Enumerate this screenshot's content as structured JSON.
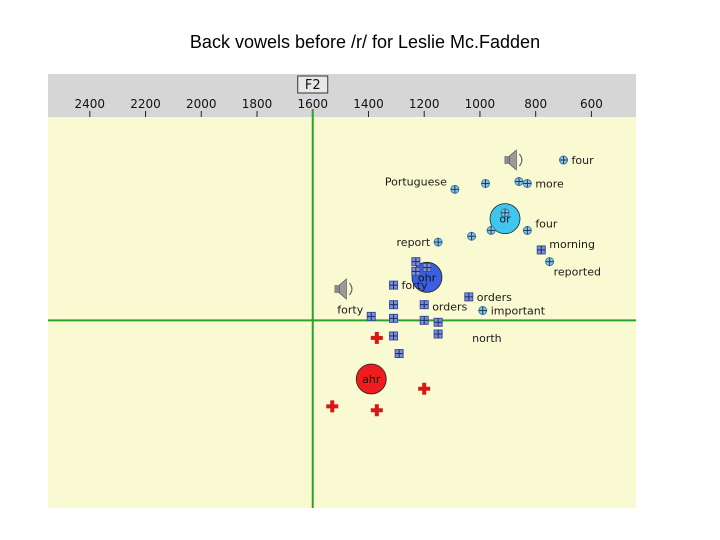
{
  "title": "Back vowels before /r/ for Leslie Mc.Fadden",
  "chart_data": {
    "type": "scatter",
    "title": "Back vowels before /r/ for Leslie Mc.Fadden",
    "x_axis": {
      "label": "F2",
      "reversed": true,
      "range": [
        2550,
        440
      ],
      "ticks": [
        2400,
        2200,
        2000,
        1800,
        1600,
        1400,
        1200,
        1000,
        800,
        600
      ],
      "position": "top"
    },
    "y_axis": {
      "label": "F1",
      "range": [
        0,
        1000
      ],
      "visible_ticks": false
    },
    "crosshair": {
      "x": 1600,
      "y": 520
    },
    "colors": {
      "plot_bg": "#fafad2",
      "axis_bg": "#d6d6d6",
      "crosshair": "#2aa32a"
    },
    "series": [
      {
        "name": "",
        "marker": "circle-plus",
        "color": "#3a7ea8",
        "points": [
          {
            "x": 700,
            "y": 110,
            "label": "four"
          },
          {
            "x": 1090,
            "y": 185,
            "label": "Portuguese"
          },
          {
            "x": 980,
            "y": 170,
            "label": ""
          },
          {
            "x": 860,
            "y": 165,
            "label": ""
          },
          {
            "x": 830,
            "y": 170,
            "label": "more"
          },
          {
            "x": 960,
            "y": 290,
            "label": ""
          },
          {
            "x": 1030,
            "y": 305,
            "label": ""
          },
          {
            "x": 1150,
            "y": 320,
            "label": "report"
          },
          {
            "x": 830,
            "y": 290,
            "label": "four"
          },
          {
            "x": 750,
            "y": 370,
            "label": "reported"
          },
          {
            "x": 910,
            "y": 245,
            "label": ""
          },
          {
            "x": 990,
            "y": 495,
            "label": "important"
          }
        ]
      },
      {
        "name": "",
        "marker": "square-grid",
        "color": "#3b4fa0",
        "points": [
          {
            "x": 1230,
            "y": 370,
            "label": ""
          },
          {
            "x": 1190,
            "y": 385,
            "label": ""
          },
          {
            "x": 1310,
            "y": 430,
            "label": "forty"
          },
          {
            "x": 1040,
            "y": 460,
            "label": "orders"
          },
          {
            "x": 1200,
            "y": 480,
            "label": "orders"
          },
          {
            "x": 1310,
            "y": 480,
            "label": ""
          },
          {
            "x": 1390,
            "y": 510,
            "label": "forty"
          },
          {
            "x": 1310,
            "y": 515,
            "label": ""
          },
          {
            "x": 1200,
            "y": 520,
            "label": ""
          },
          {
            "x": 1150,
            "y": 525,
            "label": ""
          },
          {
            "x": 1150,
            "y": 555,
            "label": "north"
          },
          {
            "x": 1310,
            "y": 560,
            "label": ""
          },
          {
            "x": 1290,
            "y": 605,
            "label": ""
          },
          {
            "x": 780,
            "y": 340,
            "label": "morning"
          },
          {
            "x": 1230,
            "y": 395,
            "label": ""
          }
        ]
      },
      {
        "name": "",
        "marker": "cross",
        "color": "#d81818",
        "points": [
          {
            "x": 1370,
            "y": 565,
            "label": ""
          },
          {
            "x": 1200,
            "y": 695,
            "label": ""
          },
          {
            "x": 1530,
            "y": 740,
            "label": ""
          },
          {
            "x": 1370,
            "y": 750,
            "label": ""
          }
        ]
      }
    ],
    "means": [
      {
        "label": "or",
        "x": 910,
        "y": 260,
        "color": "#3ec6ee"
      },
      {
        "label": "ohr",
        "x": 1190,
        "y": 410,
        "color": "#3a5fe0"
      },
      {
        "label": "ahr",
        "x": 1390,
        "y": 670,
        "color": "#ee1c1c"
      }
    ],
    "speaker_icons": [
      {
        "x": 880,
        "y": 110
      },
      {
        "x": 1490,
        "y": 440
      }
    ]
  }
}
